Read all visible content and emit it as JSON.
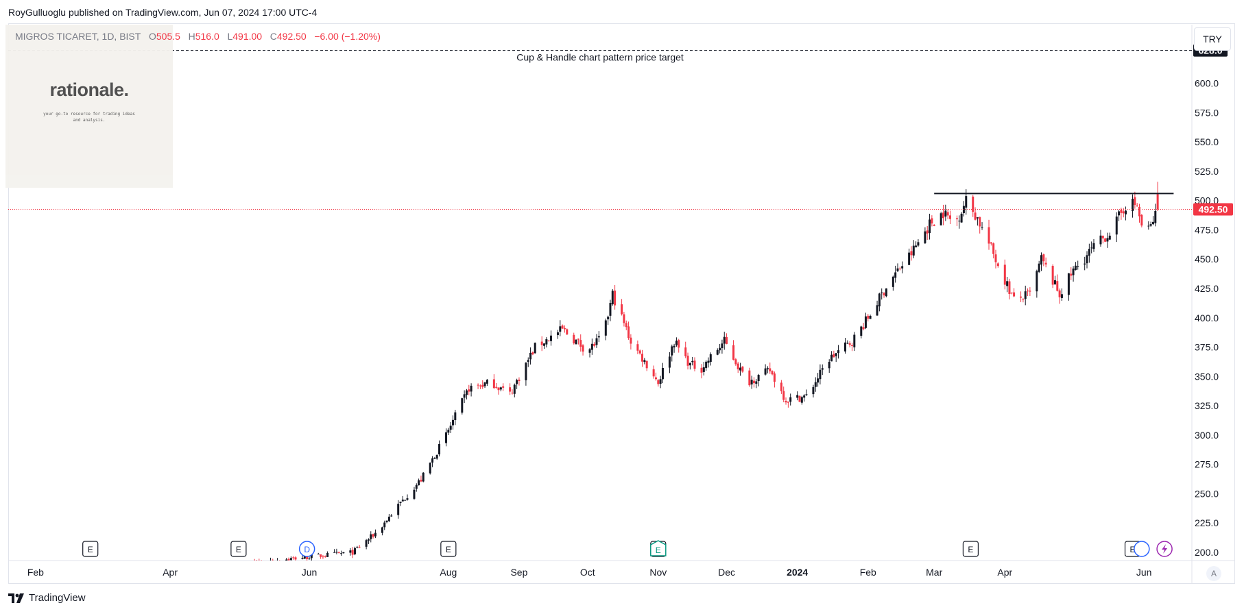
{
  "header": {
    "publisher_line": "RoyGulluoglu published on TradingView.com, Jun 07, 2024 17:00 UTC-4"
  },
  "legend": {
    "symbol": "MIGROS TICARET, 1D, BIST",
    "open_label": "O",
    "open_value": "505.5",
    "high_label": "H",
    "high_value": "516.0",
    "low_label": "L",
    "low_value": "491.00",
    "close_label": "C",
    "close_value": "492.50",
    "change": "−6.00 (−1.20%)"
  },
  "currency": "TRY",
  "logo": {
    "word": "rationale.",
    "tagline": "your go-to resource for trading ideas and analysis."
  },
  "footer": {
    "brand": "TradingView",
    "auto_label": "A"
  },
  "colors": {
    "up": "#131722",
    "down": "#f23645",
    "price_tag": "#f23645",
    "grid": "#e0e3eb"
  },
  "chart_data": {
    "type": "candlestick",
    "title": "MIGROS TICARET, 1D, BIST",
    "yaxis": {
      "ylim": [
        193,
        650
      ],
      "ticks": [
        200.0,
        225.0,
        250.0,
        275.0,
        300.0,
        325.0,
        350.0,
        375.0,
        400.0,
        425.0,
        450.0,
        475.0,
        500.0,
        525.0,
        550.0,
        575.0,
        600.0
      ],
      "tick_labels": [
        "200.0",
        "225.0",
        "250.0",
        "275.0",
        "300.0",
        "325.0",
        "350.0",
        "375.0",
        "400.0",
        "425.0",
        "450.0",
        "475.0",
        "500.0",
        "525.0",
        "550.0",
        "575.0",
        "600.0"
      ]
    },
    "xaxis": {
      "range": [
        "2023-01-20",
        "2024-06-22"
      ],
      "ticks": [
        {
          "date": "2023-02-01",
          "label": "Feb",
          "bold": false
        },
        {
          "date": "2023-04-01",
          "label": "Apr",
          "bold": false
        },
        {
          "date": "2023-06-01",
          "label": "Jun",
          "bold": false
        },
        {
          "date": "2023-08-01",
          "label": "Aug",
          "bold": false
        },
        {
          "date": "2023-09-01",
          "label": "Sep",
          "bold": false
        },
        {
          "date": "2023-10-01",
          "label": "Oct",
          "bold": false
        },
        {
          "date": "2023-11-01",
          "label": "Nov",
          "bold": false
        },
        {
          "date": "2023-12-01",
          "label": "Dec",
          "bold": false
        },
        {
          "date": "2024-01-01",
          "label": "2024",
          "bold": true
        },
        {
          "date": "2024-02-01",
          "label": "Feb",
          "bold": false
        },
        {
          "date": "2024-03-01",
          "label": "Mar",
          "bold": false
        },
        {
          "date": "2024-04-01",
          "label": "Apr",
          "bold": false
        },
        {
          "date": "2024-06-01",
          "label": "Jun",
          "bold": false
        }
      ]
    },
    "price_path": [
      [
        "2023-05-01",
        190
      ],
      [
        "2023-06-20",
        200
      ],
      [
        "2023-07-01",
        218
      ],
      [
        "2023-07-10",
        240
      ],
      [
        "2023-07-20",
        262
      ],
      [
        "2023-07-31",
        300
      ],
      [
        "2023-08-10",
        340
      ],
      [
        "2023-08-20",
        345
      ],
      [
        "2023-08-28",
        335
      ],
      [
        "2023-09-08",
        375
      ],
      [
        "2023-09-20",
        390
      ],
      [
        "2023-10-01",
        372
      ],
      [
        "2023-10-08",
        385
      ],
      [
        "2023-10-12",
        420
      ],
      [
        "2023-10-20",
        380
      ],
      [
        "2023-10-27",
        360
      ],
      [
        "2023-11-01",
        345
      ],
      [
        "2023-11-08",
        380
      ],
      [
        "2023-11-15",
        360
      ],
      [
        "2023-11-20",
        357
      ],
      [
        "2023-11-30",
        380
      ],
      [
        "2023-12-10",
        345
      ],
      [
        "2023-12-20",
        355
      ],
      [
        "2023-12-27",
        330
      ],
      [
        "2024-01-05",
        333
      ],
      [
        "2024-01-15",
        365
      ],
      [
        "2024-01-25",
        380
      ],
      [
        "2024-02-01",
        400
      ],
      [
        "2024-02-10",
        430
      ],
      [
        "2024-02-20",
        455
      ],
      [
        "2024-02-28",
        480
      ],
      [
        "2024-03-05",
        490
      ],
      [
        "2024-03-10",
        480
      ],
      [
        "2024-03-15",
        500
      ],
      [
        "2024-03-20",
        485
      ],
      [
        "2024-03-28",
        450
      ],
      [
        "2024-04-05",
        415
      ],
      [
        "2024-04-12",
        420
      ],
      [
        "2024-04-17",
        450
      ],
      [
        "2024-04-25",
        420
      ],
      [
        "2024-05-01",
        440
      ],
      [
        "2024-05-10",
        460
      ],
      [
        "2024-05-18",
        475
      ],
      [
        "2024-05-25",
        500
      ],
      [
        "2024-05-29",
        495
      ],
      [
        "2024-06-01",
        470
      ],
      [
        "2024-06-04",
        478
      ],
      [
        "2024-06-07",
        492.5
      ]
    ],
    "last_candle": {
      "date": "2024-06-07",
      "open": 505.5,
      "high": 516.0,
      "low": 491.0,
      "close": 492.5
    },
    "resistance_line": {
      "value": 506,
      "from": "2024-03-01",
      "to": "2024-06-14"
    },
    "target_line": {
      "value": 628.0,
      "label": "Cup & Handle chart pattern price target",
      "tag": "628.0"
    },
    "last_price": {
      "value": 492.5,
      "tag": "492.50"
    },
    "event_markers": [
      {
        "date": "2023-02-25",
        "type": "E"
      },
      {
        "date": "2023-05-01",
        "type": "E"
      },
      {
        "date": "2023-05-31",
        "type": "D"
      },
      {
        "date": "2023-08-01",
        "type": "E"
      },
      {
        "date": "2023-11-01",
        "type": "E"
      },
      {
        "date": "2024-03-17",
        "type": "E"
      },
      {
        "date": "2024-05-27",
        "type": "E"
      },
      {
        "date": "2024-05-31",
        "type": "O"
      },
      {
        "date": "2024-06-10",
        "type": "S"
      }
    ]
  }
}
